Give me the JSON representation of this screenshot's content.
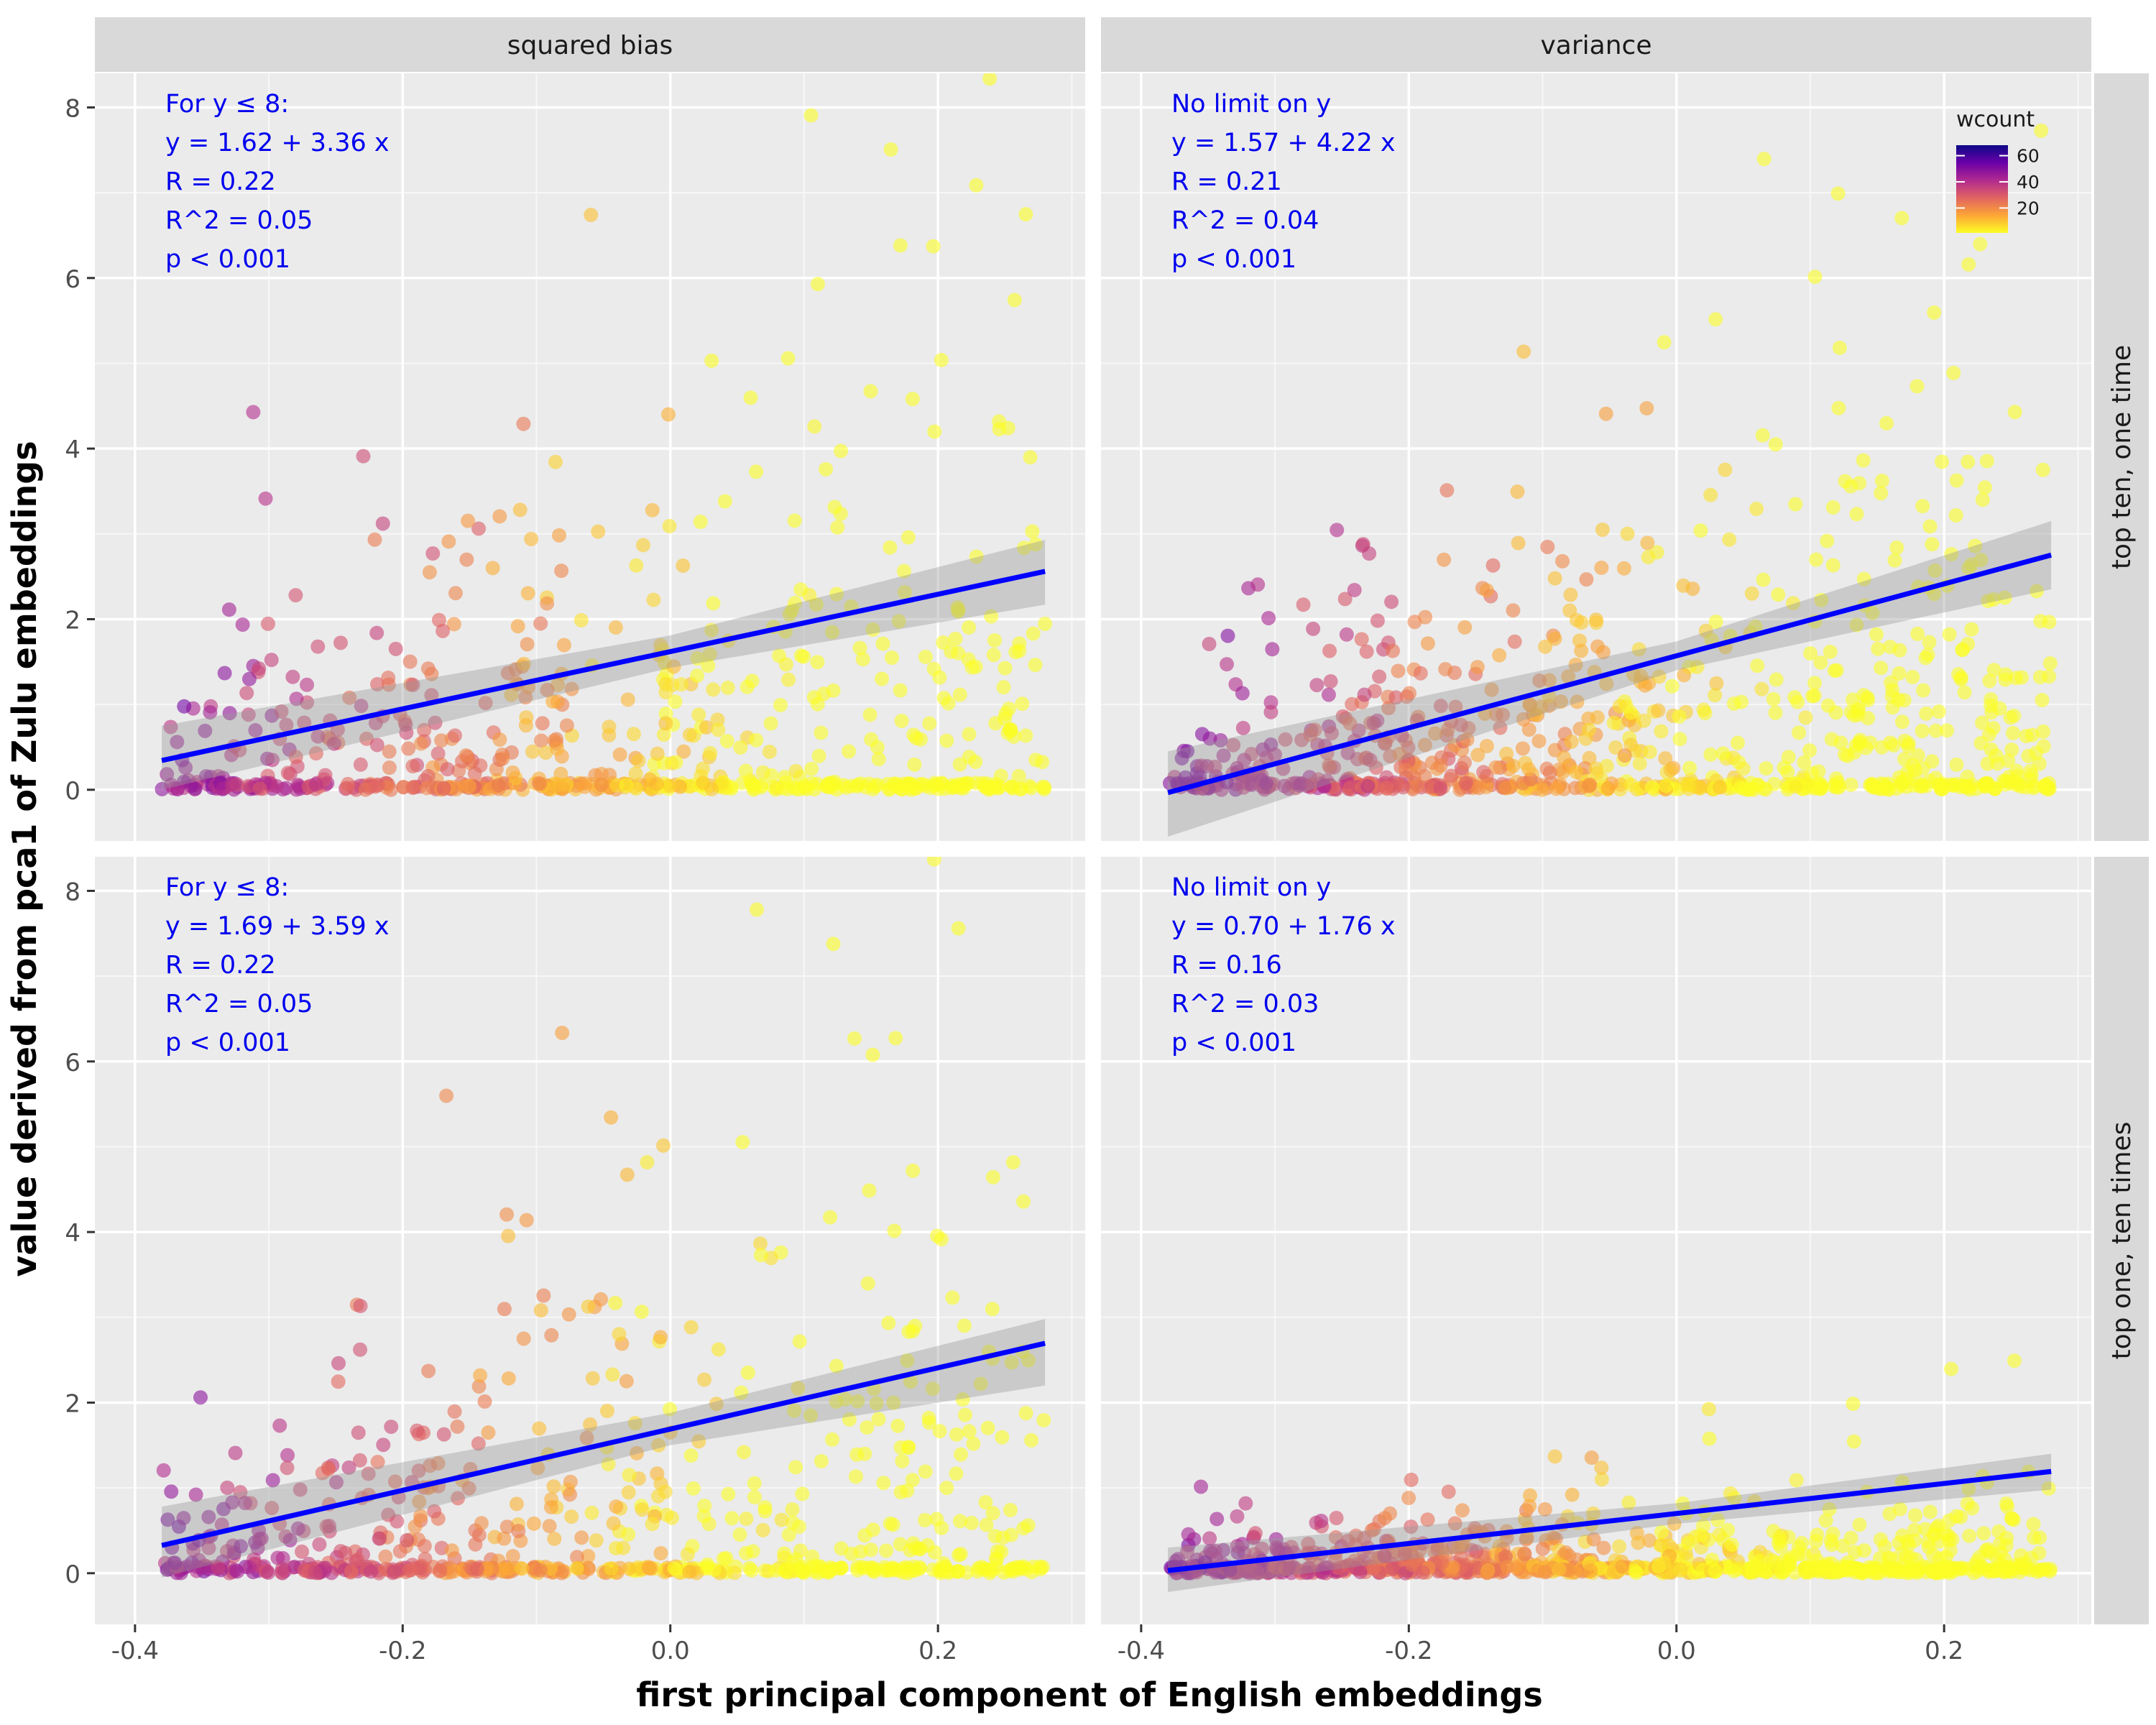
{
  "chart_data": {
    "type": "scatter",
    "xlabel": "first principal component of English embeddings",
    "ylabel": "value derived from pca1 of Zulu embeddings",
    "xlim": [
      -0.43,
      0.31
    ],
    "ylim": [
      -0.6,
      8.4
    ],
    "x_ticks": [
      -0.4,
      -0.2,
      0.0,
      0.2
    ],
    "x_tick_labels": [
      "-0.4",
      "-0.2",
      "0.0",
      "0.2"
    ],
    "y_ticks": [
      0,
      2,
      4,
      6,
      8
    ],
    "y_tick_labels": [
      "0",
      "2",
      "4",
      "6",
      "8"
    ],
    "grid": true,
    "facet_cols": [
      "squared bias",
      "variance"
    ],
    "facet_rows": [
      "top ten, one time",
      "top one, ten times"
    ],
    "legend": {
      "title": "wcount",
      "ticks": [
        60,
        40,
        20
      ],
      "tick_labels": [
        "60",
        "40",
        "20"
      ],
      "range": [
        1,
        68
      ],
      "placement": "top-right",
      "colors": [
        "#fcfd24",
        "#fca636",
        "#e16462",
        "#b12a90",
        "#6a00a8",
        "#0d0887"
      ]
    },
    "panels": [
      {
        "row": 0,
        "col": 0,
        "annotation": [
          "For y ≤ 8:",
          "y = 1.62 + 3.36 x",
          "R = 0.22",
          "R^2 = 0.05",
          "p < 0.001"
        ],
        "intercept": 1.62,
        "slope": 3.36,
        "line_x": [
          -0.38,
          0.28
        ],
        "band": [
          [
            -0.38,
            0.0,
            0.75
          ],
          [
            0.0,
            1.43,
            1.81
          ],
          [
            0.28,
            2.17,
            2.93
          ]
        ],
        "seed": 11,
        "n": 720,
        "slope_shape": 3.36,
        "zero_frac": 0.4,
        "spread": 3.0
      },
      {
        "row": 0,
        "col": 1,
        "annotation": [
          "No limit on y",
          "y = 1.57 + 4.22 x",
          "R = 0.21",
          "R^2 = 0.04",
          "p < 0.001"
        ],
        "intercept": 1.57,
        "slope": 4.22,
        "line_x": [
          -0.38,
          0.28
        ],
        "band": [
          [
            -0.38,
            -0.55,
            0.45
          ],
          [
            0.0,
            1.4,
            1.74
          ],
          [
            0.28,
            2.35,
            3.15
          ]
        ],
        "seed": 23,
        "n": 900,
        "slope_shape": 4.22,
        "zero_frac": 0.28,
        "spread": 2.3
      },
      {
        "row": 1,
        "col": 0,
        "annotation": [
          "For y ≤ 8:",
          "y = 1.69 + 3.59 x",
          "R = 0.22",
          "R^2 = 0.05",
          "p < 0.001"
        ],
        "intercept": 1.69,
        "slope": 3.59,
        "line_x": [
          -0.38,
          0.28
        ],
        "band": [
          [
            -0.38,
            -0.05,
            0.78
          ],
          [
            0.0,
            1.5,
            1.88
          ],
          [
            0.28,
            2.2,
            2.98
          ]
        ],
        "seed": 37,
        "n": 720,
        "slope_shape": 3.59,
        "zero_frac": 0.4,
        "spread": 3.0
      },
      {
        "row": 1,
        "col": 1,
        "annotation": [
          "No limit on y",
          "y = 0.70 + 1.76 x",
          "R = 0.16",
          "R^2 = 0.03",
          "p < 0.001"
        ],
        "intercept": 0.7,
        "slope": 1.76,
        "line_x": [
          -0.38,
          0.28
        ],
        "band": [
          [
            -0.38,
            -0.22,
            0.3
          ],
          [
            0.0,
            0.58,
            0.82
          ],
          [
            0.28,
            0.98,
            1.4
          ]
        ],
        "seed": 53,
        "n": 900,
        "slope_shape": 1.76,
        "zero_frac": 0.45,
        "spread": 1.1
      }
    ]
  }
}
